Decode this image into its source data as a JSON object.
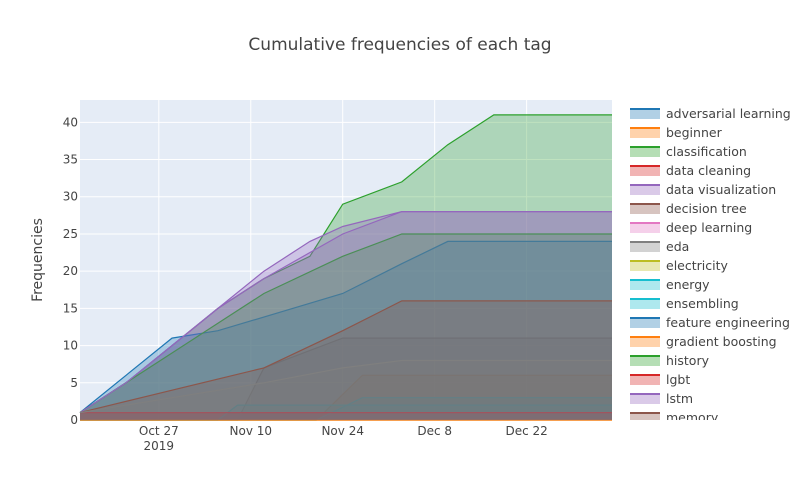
{
  "chart_data": {
    "type": "area",
    "title": "Cumulative frequencies of each tag",
    "xlabel": "",
    "ylabel": "Frequencies",
    "x_range": [
      "2019-10-15",
      "2020-01-04"
    ],
    "ylim": [
      0,
      43
    ],
    "grid": true,
    "legend_position": "right",
    "x_ticks": [
      {
        "value": "2019-10-27",
        "label": "Oct 27",
        "sublabel": "2019"
      },
      {
        "value": "2019-11-10",
        "label": "Nov 10"
      },
      {
        "value": "2019-11-24",
        "label": "Nov 24"
      },
      {
        "value": "2019-12-08",
        "label": "Dec 8"
      },
      {
        "value": "2019-12-22",
        "label": "Dec 22"
      }
    ],
    "y_ticks": [
      0,
      5,
      10,
      15,
      20,
      25,
      30,
      35,
      40
    ],
    "series": [
      {
        "name": "adversarial learning",
        "color": "#1f77b4",
        "x": [
          "2019-10-15",
          "2019-10-30",
          "2020-01-04"
        ],
        "values": [
          1,
          1,
          1
        ]
      },
      {
        "name": "beginner",
        "color": "#ff7f0e",
        "x": [
          "2019-10-15",
          "2019-11-20",
          "2019-11-27",
          "2020-01-04"
        ],
        "values": [
          0,
          0,
          6,
          6
        ]
      },
      {
        "name": "classification",
        "color": "#2ca02c",
        "x": [
          "2019-10-15",
          "2019-10-22",
          "2019-10-29",
          "2019-11-05",
          "2019-11-12",
          "2019-11-19",
          "2019-11-24",
          "2019-12-03",
          "2019-12-10",
          "2019-12-17",
          "2020-01-04"
        ],
        "values": [
          1,
          5,
          10,
          15,
          19,
          22,
          29,
          32,
          37,
          41,
          41
        ]
      },
      {
        "name": "data cleaning",
        "color": "#d62728",
        "x": [
          "2019-10-15",
          "2020-01-04"
        ],
        "values": [
          1,
          1
        ]
      },
      {
        "name": "data visualization",
        "color": "#9467bd",
        "x": [
          "2019-10-15",
          "2019-10-22",
          "2019-10-29",
          "2019-11-05",
          "2019-11-12",
          "2019-11-19",
          "2019-11-24",
          "2019-12-03",
          "2020-01-04"
        ],
        "values": [
          1,
          5,
          10,
          15,
          20,
          24,
          26,
          28,
          28
        ]
      },
      {
        "name": "decision tree",
        "color": "#8c564b",
        "x": [
          "2019-10-15",
          "2020-01-04"
        ],
        "values": [
          1,
          1
        ]
      },
      {
        "name": "deep learning",
        "color": "#e377c2",
        "x": [
          "2019-10-15",
          "2020-01-04"
        ],
        "values": [
          0,
          0
        ]
      },
      {
        "name": "eda",
        "color": "#7f7f7f",
        "x": [
          "2019-10-15",
          "2019-11-08",
          "2019-11-12",
          "2019-11-24",
          "2020-01-04"
        ],
        "values": [
          0,
          0,
          7,
          11,
          11
        ]
      },
      {
        "name": "electricity",
        "color": "#bcbd22",
        "x": [
          "2019-10-15",
          "2020-01-04"
        ],
        "values": [
          0,
          0
        ]
      },
      {
        "name": "energy",
        "color": "#17becf",
        "x": [
          "2019-10-15",
          "2019-11-05",
          "2019-11-08",
          "2020-01-04"
        ],
        "values": [
          0,
          0,
          2,
          2
        ]
      },
      {
        "name": "ensembling",
        "color": "#17becf",
        "x": [
          "2019-10-15",
          "2019-11-20",
          "2019-11-27",
          "2020-01-04"
        ],
        "values": [
          0,
          0,
          3,
          3
        ]
      },
      {
        "name": "feature engineering",
        "color": "#1f77b4",
        "x": [
          "2019-10-15",
          "2019-10-29",
          "2019-11-05",
          "2019-11-24",
          "2019-12-03",
          "2019-12-10",
          "2020-01-04"
        ],
        "values": [
          1,
          11,
          12,
          17,
          21,
          24,
          24
        ]
      },
      {
        "name": "gradient boosting",
        "color": "#ff7f0e",
        "x": [
          "2019-10-15",
          "2020-01-04"
        ],
        "values": [
          0,
          0
        ]
      },
      {
        "name": "history",
        "color": "#2ca02c",
        "x": [
          "2019-10-15",
          "2019-10-22",
          "2019-10-29",
          "2019-11-05",
          "2019-11-12",
          "2019-11-24",
          "2019-12-03",
          "2020-01-04"
        ],
        "values": [
          1,
          5,
          9,
          13,
          17,
          22,
          25,
          25
        ]
      },
      {
        "name": "lgbt",
        "color": "#d62728",
        "x": [
          "2019-10-15",
          "2020-01-04"
        ],
        "values": [
          1,
          1
        ]
      },
      {
        "name": "lstm",
        "color": "#9467bd",
        "x": [
          "2019-10-15",
          "2019-10-22",
          "2019-10-29",
          "2019-11-05",
          "2019-11-12",
          "2019-11-24",
          "2019-12-03",
          "2020-01-04"
        ],
        "values": [
          1,
          5,
          10,
          15,
          19,
          25,
          28,
          28
        ]
      },
      {
        "name": "memory",
        "color": "#8c564b",
        "x": [
          "2019-10-15",
          "2019-10-29",
          "2019-11-12",
          "2019-11-24",
          "2019-12-03",
          "2020-01-04"
        ],
        "values": [
          1,
          4,
          7,
          12,
          16,
          16
        ]
      },
      {
        "name": "",
        "color": "#7f7f7f",
        "x": [
          "2019-10-15",
          "2019-10-29",
          "2019-11-12",
          "2019-11-24",
          "2019-12-03",
          "2020-01-04"
        ],
        "values": [
          1,
          3,
          5,
          7,
          8,
          8
        ]
      }
    ]
  }
}
